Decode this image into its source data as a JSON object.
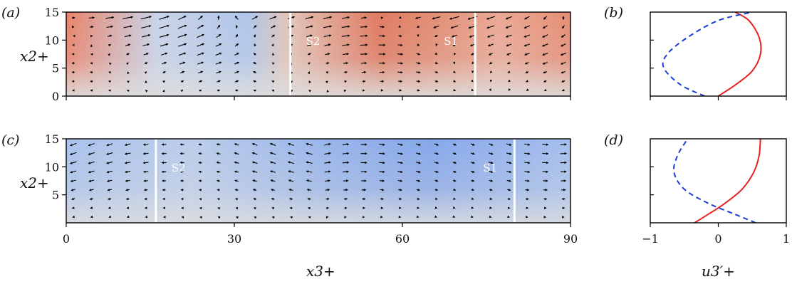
{
  "chart_data": [
    {
      "panel": "(a)",
      "type": "heatmap",
      "title": "",
      "xlabel": "",
      "ylabel": "x2+",
      "xlim": [
        0,
        90
      ],
      "ylim": [
        0,
        15
      ],
      "xticks": [
        0,
        30,
        60,
        90
      ],
      "yticks": [
        0,
        5,
        10,
        15
      ],
      "field_colors": {
        "negative": "#6f97d8",
        "neutral": "#dedede",
        "positive": "#d9563c"
      },
      "vector_overlay": true,
      "lines": [
        {
          "label": "S2",
          "x": 40
        },
        {
          "label": "S1",
          "x": 73
        }
      ]
    },
    {
      "panel": "(b)",
      "type": "line",
      "xlim": [
        -1,
        1
      ],
      "ylim": [
        0,
        15
      ],
      "series": [
        {
          "style": "solid",
          "color": "#e8201f",
          "x": [
            0.0,
            0.25,
            0.5,
            0.62,
            0.6,
            0.45,
            0.25
          ],
          "y": [
            0,
            2,
            4.5,
            7.5,
            10.5,
            13.5,
            15
          ]
        },
        {
          "style": "dashed",
          "color": "#1a3fd6",
          "x": [
            -0.2,
            -0.55,
            -0.8,
            -0.75,
            -0.45,
            0.0,
            0.5
          ],
          "y": [
            0,
            2,
            5,
            7.5,
            10.5,
            13.5,
            15
          ]
        }
      ]
    },
    {
      "panel": "(c)",
      "type": "heatmap",
      "title": "",
      "xlabel": "x3+",
      "ylabel": "x2+",
      "xlim": [
        0,
        90
      ],
      "ylim": [
        0,
        15
      ],
      "xticks": [
        0,
        30,
        60,
        90
      ],
      "yticks": [
        5,
        10,
        15
      ],
      "field_colors": {
        "negative": "#6f97d8",
        "neutral": "#dedede",
        "positive": "#d9563c"
      },
      "vector_overlay": true,
      "lines": [
        {
          "label": "S2",
          "x": 16
        },
        {
          "label": "S1",
          "x": 80
        }
      ]
    },
    {
      "panel": "(d)",
      "type": "line",
      "xlabel": "u3′+",
      "xlim": [
        -1,
        1
      ],
      "ylim": [
        0,
        15
      ],
      "xticks": [
        -1,
        0,
        1
      ],
      "series": [
        {
          "style": "solid",
          "color": "#e8201f",
          "x": [
            -0.35,
            -0.15,
            0.1,
            0.35,
            0.52,
            0.6,
            0.62
          ],
          "y": [
            0,
            1.5,
            3.5,
            6,
            9,
            12,
            15
          ]
        },
        {
          "style": "dashed",
          "color": "#1a3fd6",
          "x": [
            0.55,
            0.25,
            -0.15,
            -0.5,
            -0.65,
            -0.6,
            -0.45
          ],
          "y": [
            0,
            1.5,
            3.5,
            6,
            9,
            12,
            15
          ]
        }
      ]
    }
  ]
}
